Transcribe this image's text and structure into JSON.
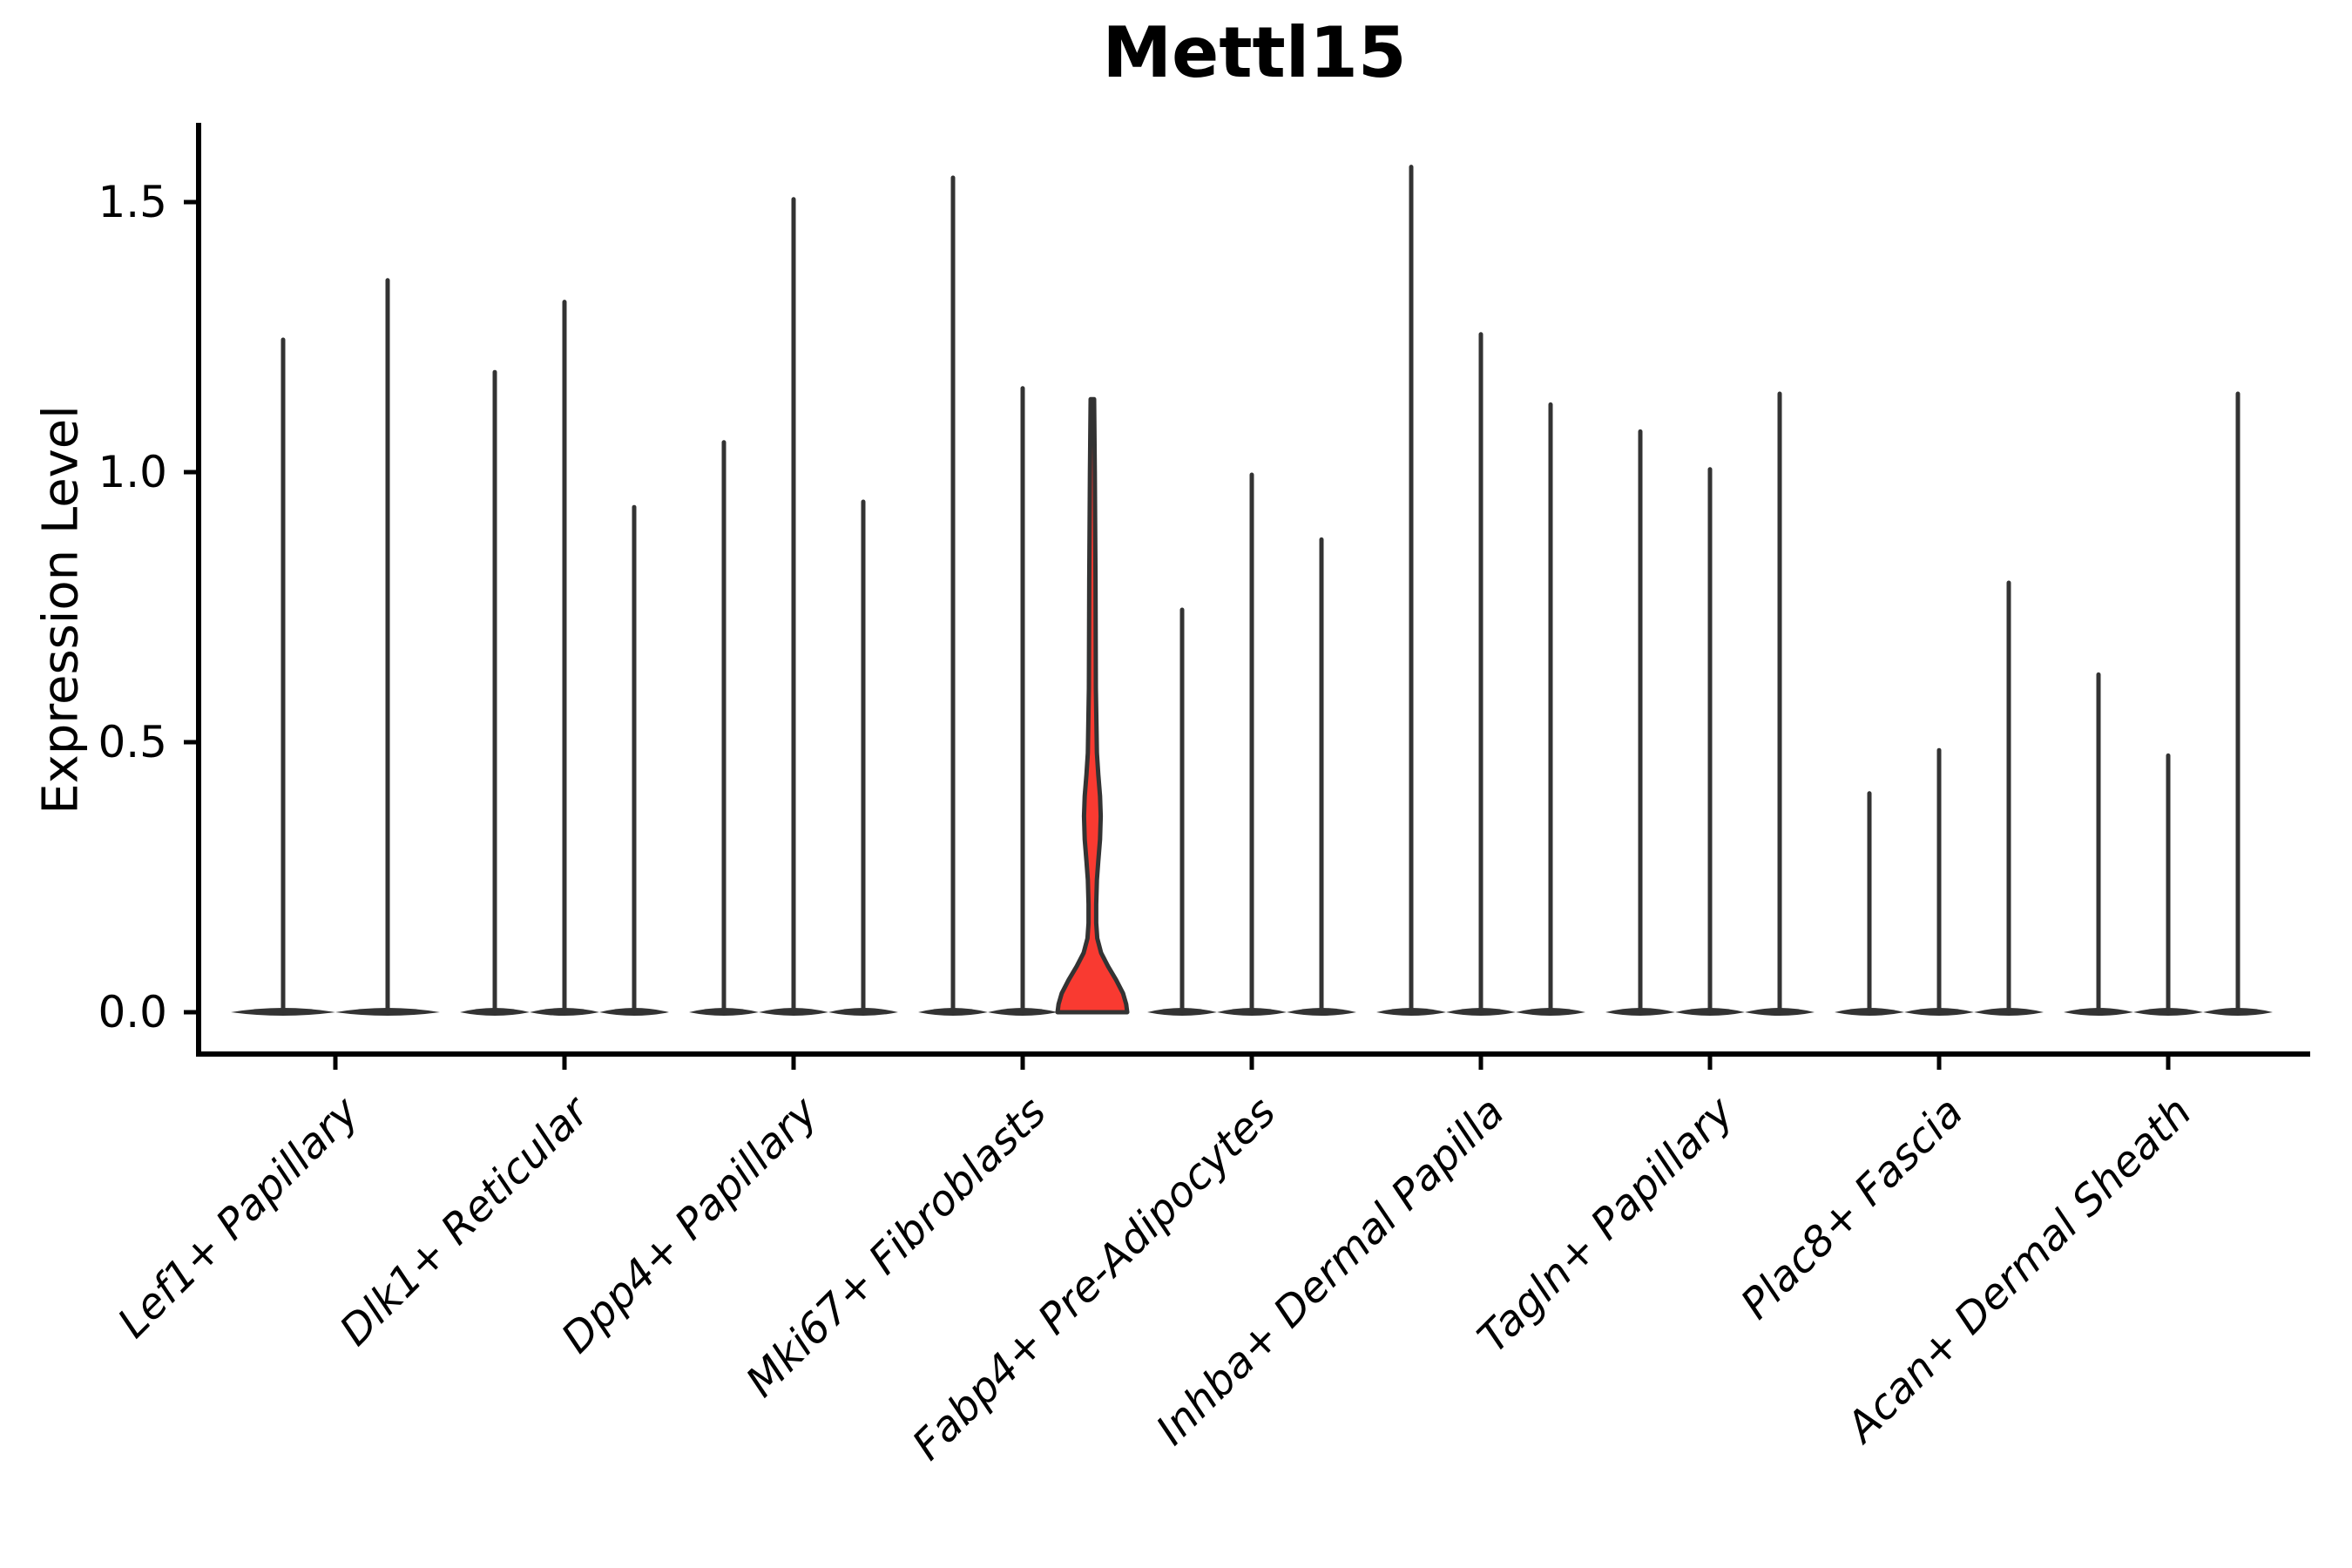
{
  "title": "Mettl15",
  "y_axis": {
    "label": "Expression Level",
    "ticks": [
      "1.5",
      "1.0",
      "0.5",
      "0.0"
    ]
  },
  "x_axis": {
    "categories": [
      "Lef1+ Papillary",
      "Dlk1+ Reticular",
      "Dpp4+ Papillary",
      "Mki67+ Fibroblasts",
      "Fabp4+ Pre-Adipocytes",
      "Inhba+ Dermal Papilla",
      "Tagln+ Papillary",
      "Plac8+ Fascia",
      "Acan+ Dermal Sheath"
    ]
  },
  "chart_data": {
    "type": "violin",
    "title": "Mettl15",
    "xlabel": "",
    "ylabel": "Expression Level",
    "ylim": [
      0,
      1.65
    ],
    "ytick_values": [
      0.0,
      0.5,
      1.0,
      1.5
    ],
    "grid": false,
    "legend": "none",
    "categories": [
      "Lef1+ Papillary",
      "Dlk1+ Reticular",
      "Dpp4+ Papillary",
      "Mki67+ Fibroblasts",
      "Fabp4+ Pre-Adipocytes",
      "Inhba+ Dermal Papilla",
      "Tagln+ Papillary",
      "Plac8+ Fascia",
      "Acan+ Dermal Sheath"
    ],
    "description": "Violin plot of Mettl15 expression; nearly all violins collapse to a thin spike with a flat base at 0. One violin (3rd violin of Mki67+ Fibroblasts) is highlighted red with a visible density bulge.",
    "groups": [
      {
        "category": "Lef1+ Papillary",
        "violin_max": [
          1.25,
          1.36
        ]
      },
      {
        "category": "Dlk1+ Reticular",
        "violin_max": [
          1.19,
          1.32,
          0.94
        ]
      },
      {
        "category": "Dpp4+ Papillary",
        "violin_max": [
          1.06,
          1.51,
          0.95
        ]
      },
      {
        "category": "Mki67+ Fibroblasts",
        "violin_max": [
          1.55,
          1.16,
          1.14
        ],
        "highlight_index": 2
      },
      {
        "category": "Fabp4+ Pre-Adipocytes",
        "violin_max": [
          0.75,
          1.0,
          0.88
        ]
      },
      {
        "category": "Inhba+ Dermal Papilla",
        "violin_max": [
          1.57,
          1.26,
          1.13
        ]
      },
      {
        "category": "Tagln+ Papillary",
        "violin_max": [
          1.08,
          1.01,
          1.15
        ]
      },
      {
        "category": "Plac8+ Fascia",
        "violin_max": [
          0.41,
          0.49,
          0.8
        ]
      },
      {
        "category": "Acan+ Dermal Sheath",
        "violin_max": [
          0.63,
          0.48,
          1.15
        ]
      }
    ],
    "highlight_violin": {
      "category": "Mki67+ Fibroblasts",
      "position_in_group": 3,
      "max": 1.14,
      "bulge_center": 0.36,
      "bulge_range": [
        0.25,
        0.48
      ],
      "base_flare_below": 0.14,
      "profile": [
        [
          1.135,
          0.05
        ],
        [
          1.0,
          0.07
        ],
        [
          0.8,
          0.09
        ],
        [
          0.6,
          0.1
        ],
        [
          0.48,
          0.13
        ],
        [
          0.44,
          0.17
        ],
        [
          0.4,
          0.22
        ],
        [
          0.363,
          0.24
        ],
        [
          0.32,
          0.22
        ],
        [
          0.28,
          0.17
        ],
        [
          0.245,
          0.13
        ],
        [
          0.2,
          0.11
        ],
        [
          0.165,
          0.11
        ],
        [
          0.137,
          0.14
        ],
        [
          0.11,
          0.25
        ],
        [
          0.085,
          0.45
        ],
        [
          0.06,
          0.68
        ],
        [
          0.035,
          0.88
        ],
        [
          0.015,
          0.97
        ],
        [
          0.0,
          1.0
        ]
      ]
    },
    "colors": {
      "stroke": "#333333",
      "base_fill": "#333333",
      "highlight_fill": "#f93a31",
      "axis": "#000000",
      "background": "#ffffff"
    }
  }
}
